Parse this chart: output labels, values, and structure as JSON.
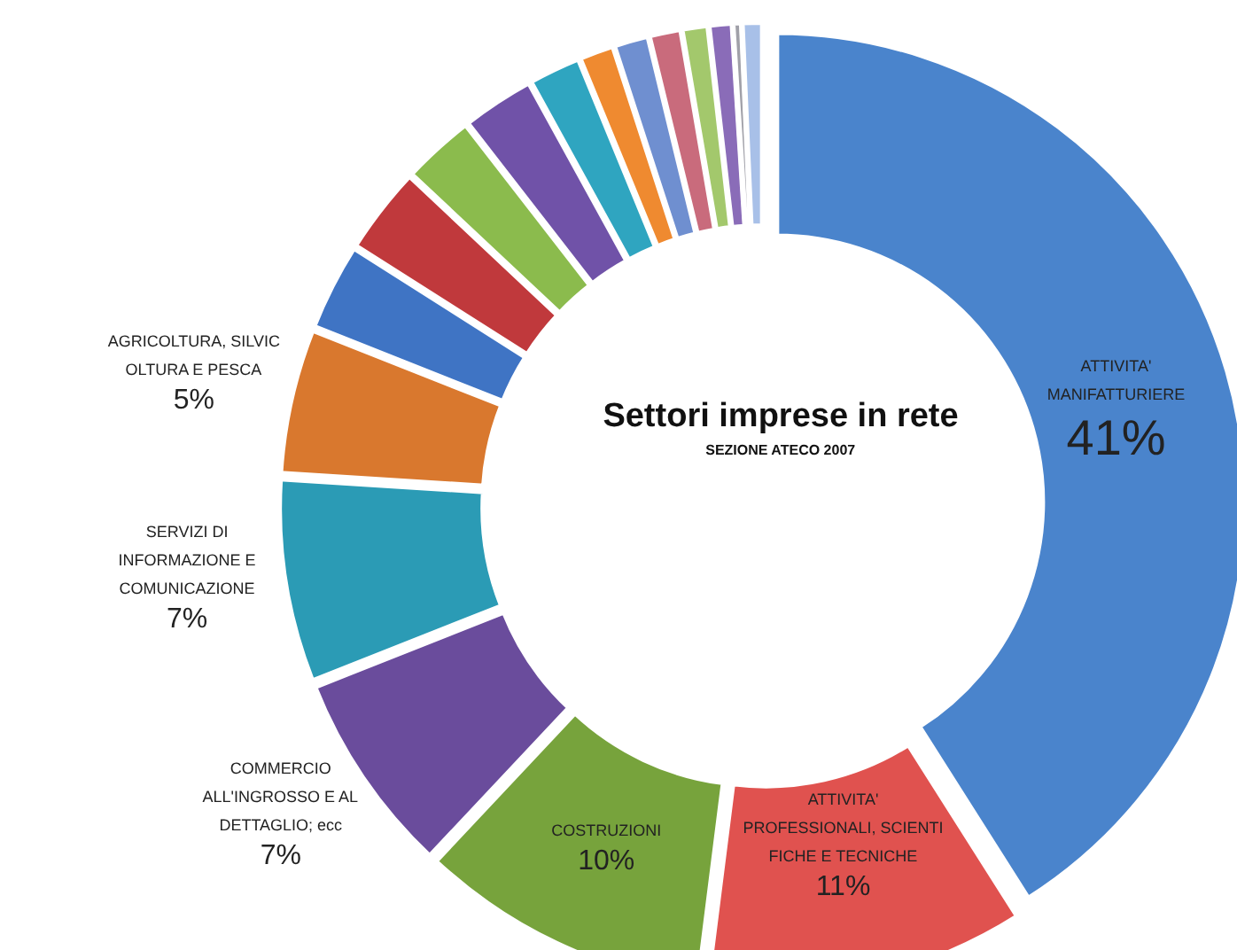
{
  "chart_data": {
    "type": "donut",
    "title": "Settori imprese in rete",
    "subtitle": "SEZIONE ATECO 2007",
    "categories": [
      "ATTIVITA'\nMANIFATTURIERE",
      "ATTIVITA'\nPROFESSIONALI, SCIENTI\nFICHE E TECNICHE",
      "COSTRUZIONI",
      "COMMERCIO\nALL'INGROSSO E AL\nDETTAGLIO; ecc",
      "SERVIZI DI\nINFORMAZIONE E\nCOMUNICAZIONE",
      "AGRICOLTURA, SILVIC\nOLTURA E PESCA",
      null,
      null,
      null,
      null,
      null,
      null,
      null,
      null,
      null,
      null,
      null,
      null
    ],
    "values": [
      41,
      11,
      10,
      7,
      7,
      5,
      3,
      3,
      2.5,
      2.5,
      1.8,
      1.2,
      1.2,
      1.1,
      0.9,
      0.8,
      0.3,
      0.7
    ],
    "value_labels": [
      "41%",
      "11%",
      "10%",
      "7%",
      "7%",
      "5%",
      null,
      null,
      null,
      null,
      null,
      null,
      null,
      null,
      null,
      null,
      null,
      null
    ],
    "colors": [
      "#4a84cc",
      "#e0524f",
      "#77a33c",
      "#6a4c9c",
      "#2b9bb5",
      "#d9782e",
      "#3f74c4",
      "#c0393c",
      "#8bbb4d",
      "#7052a8",
      "#2fa5c0",
      "#ef8a30",
      "#6f8fd0",
      "#c96b7c",
      "#a3c86c",
      "#8a6cb8",
      "#a0a0a8",
      "#a8c0e8"
    ]
  }
}
